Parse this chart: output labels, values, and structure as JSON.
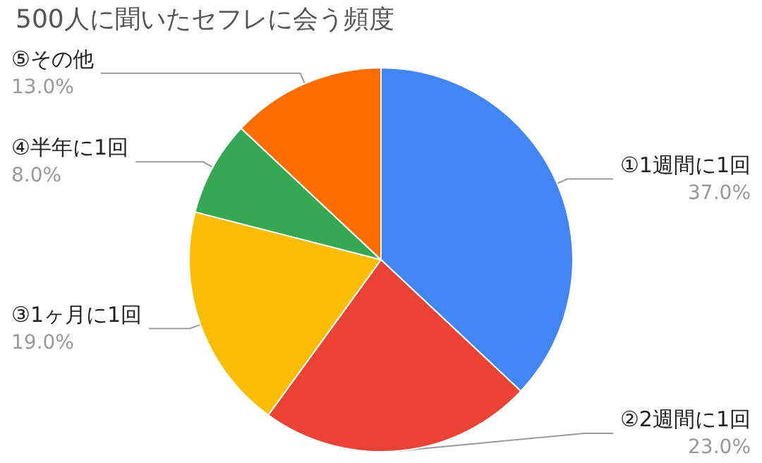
{
  "chart_data": {
    "type": "pie",
    "title": "500人に聞いたセフレに会う頻度",
    "categories": [
      "①1週間に1回",
      "②2週間に1回",
      "③1ヶ月に1回",
      "④半年に1回",
      "⑤その他"
    ],
    "values": [
      37,
      23,
      19,
      8,
      13
    ],
    "value_labels": [
      "37.0%",
      "23.0%",
      "19.0%",
      "8.0%",
      "13.0%"
    ],
    "colors": [
      "#4285f4",
      "#ea4335",
      "#fbbc04",
      "#34a853",
      "#ff6d01"
    ],
    "legend": false
  }
}
